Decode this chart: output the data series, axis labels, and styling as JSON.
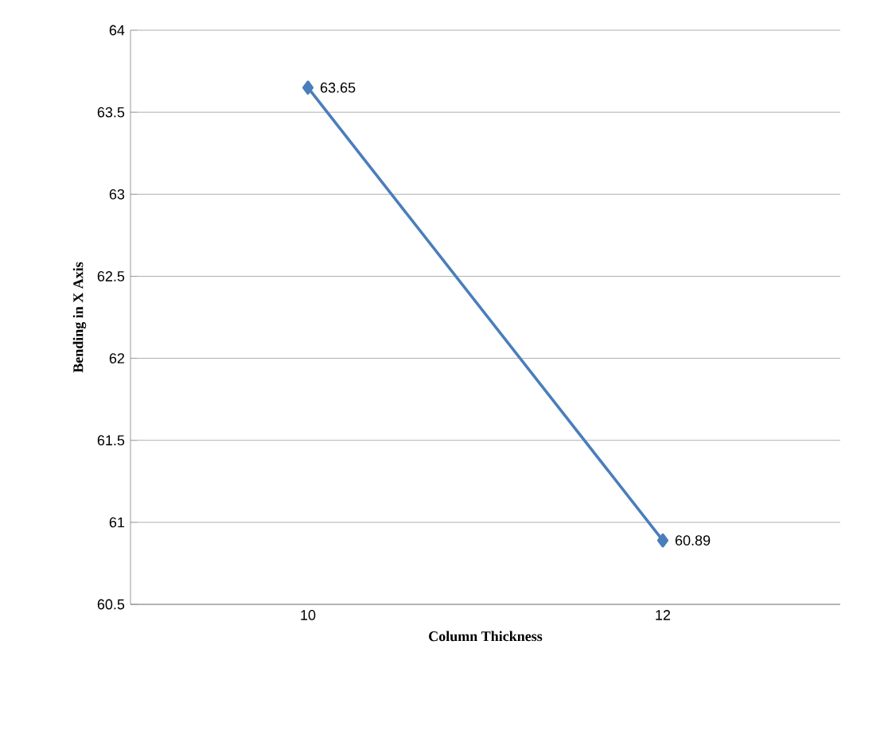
{
  "chart_data": {
    "type": "line",
    "xlabel": "Column Thickness",
    "ylabel": "Bending in X Axis",
    "categories": [
      "10",
      "12"
    ],
    "values": [
      63.65,
      60.89
    ],
    "color": "#4a7ebb",
    "marker": "diamond",
    "line_style": "solid",
    "data_labels": true,
    "ylim": [
      60.5,
      64
    ],
    "yticks": [
      60.5,
      61,
      61.5,
      62,
      62.5,
      63,
      63.5,
      64
    ],
    "grid": "y"
  }
}
